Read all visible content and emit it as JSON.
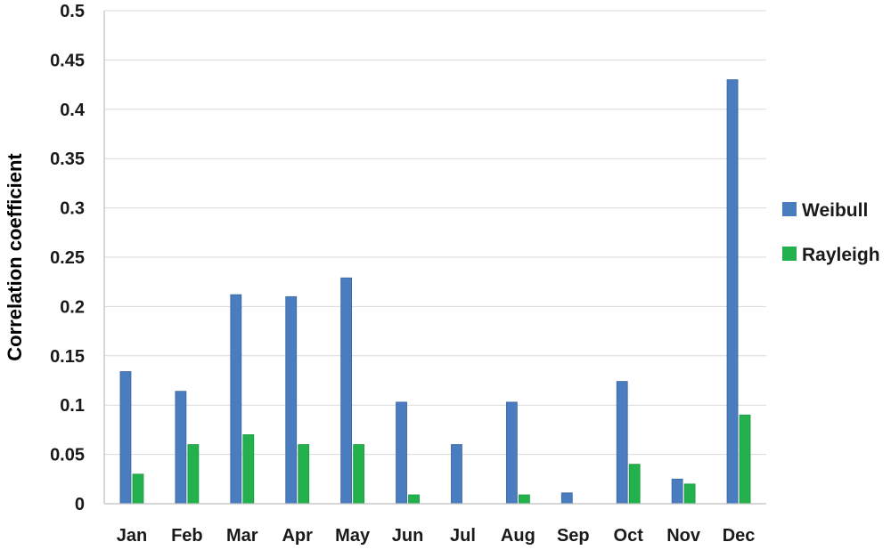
{
  "chart_data": {
    "type": "bar",
    "title": "",
    "xlabel": "",
    "ylabel": "Correlation coefficient",
    "ylim": [
      0,
      0.5
    ],
    "yticks": [
      "0",
      "0.05",
      "0.1",
      "0.15",
      "0.2",
      "0.25",
      "0.3",
      "0.35",
      "0.4",
      "0.45",
      "0.5"
    ],
    "grid": true,
    "legend_position": "right",
    "categories": [
      "Jan",
      "Feb",
      "Mar",
      "Apr",
      "May",
      "Jun",
      "Jul",
      "Aug",
      "Sep",
      "Oct",
      "Nov",
      "Dec"
    ],
    "series": [
      {
        "name": "Weibull",
        "color": "#4a7dbf",
        "values": [
          0.134,
          0.114,
          0.212,
          0.21,
          0.229,
          0.103,
          0.06,
          0.103,
          0.011,
          0.124,
          0.025,
          0.43
        ]
      },
      {
        "name": "Rayleigh",
        "color": "#22b14c",
        "values": [
          0.03,
          0.06,
          0.07,
          0.06,
          0.06,
          0.009,
          0,
          0.009,
          0,
          0.04,
          0.02,
          0.09
        ]
      }
    ]
  }
}
